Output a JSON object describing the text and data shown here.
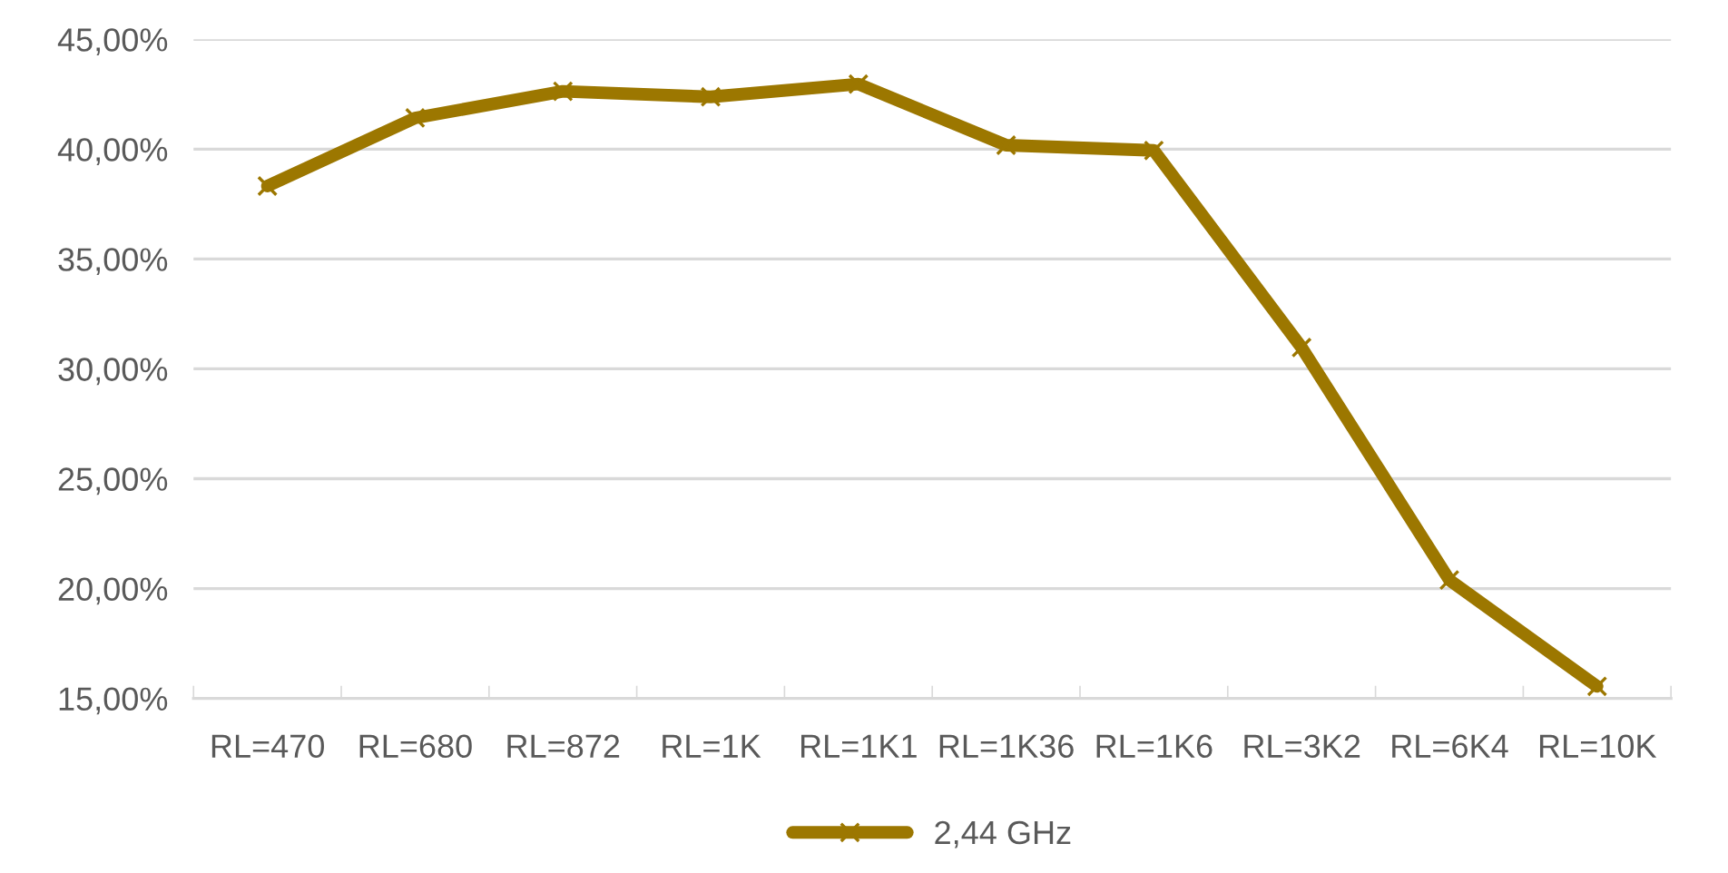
{
  "chart_data": {
    "type": "line",
    "categories": [
      "RL=470",
      "RL=680",
      "RL=872",
      "RL=1K",
      "RL=1K1",
      "RL=1K36",
      "RL=1K6",
      "RL=3K2",
      "RL=6K4",
      "RL=10K"
    ],
    "series": [
      {
        "name": "2,44 GHz",
        "color": "#9c7700",
        "values": [
          38.32,
          41.42,
          42.63,
          42.38,
          42.96,
          40.18,
          39.94,
          30.97,
          20.39,
          15.55
        ]
      }
    ],
    "ylim": [
      15,
      45
    ],
    "yticks": [
      {
        "value": 15,
        "label": "15,00%"
      },
      {
        "value": 20,
        "label": "20,00%"
      },
      {
        "value": 25,
        "label": "25,00%"
      },
      {
        "value": 30,
        "label": "30,00%"
      },
      {
        "value": 35,
        "label": "35,00%"
      },
      {
        "value": 40,
        "label": "40,00%"
      },
      {
        "value": 45,
        "label": "45,00%"
      }
    ],
    "grid": "y",
    "legend": "bottom",
    "marker": "cross",
    "line_style": "solid"
  }
}
